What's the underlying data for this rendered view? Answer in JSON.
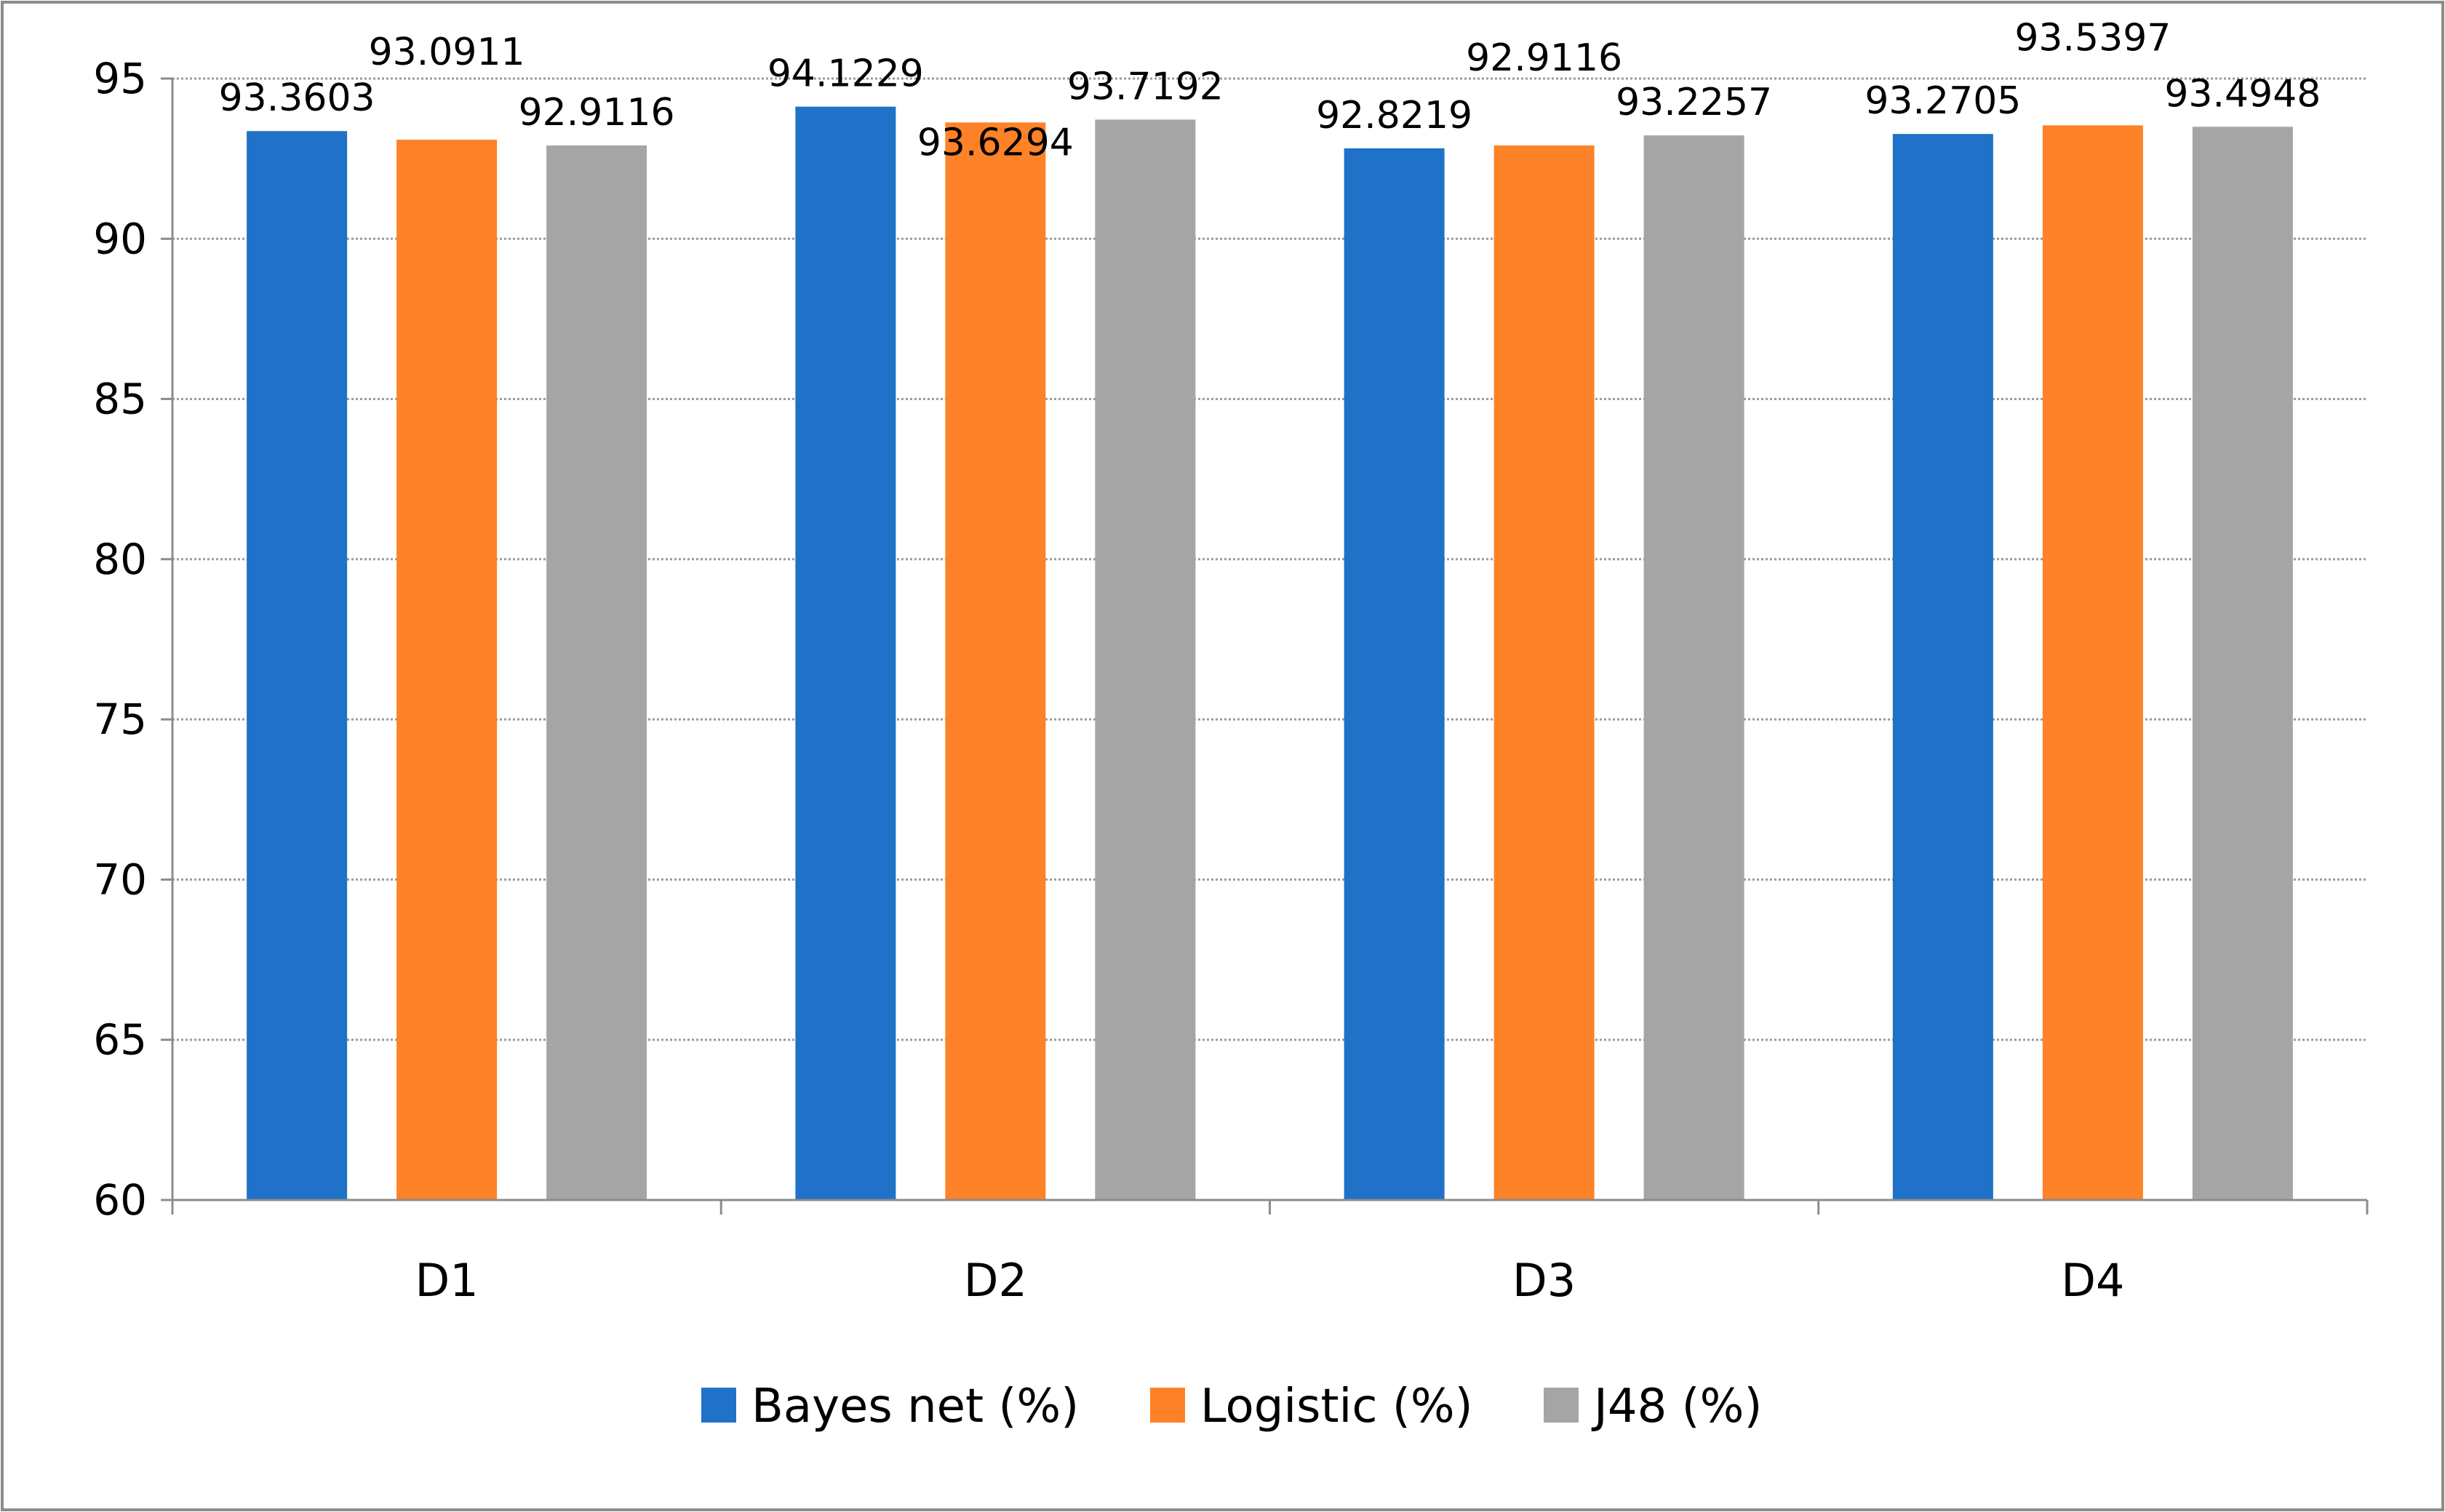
{
  "chart_data": {
    "type": "bar",
    "title": "",
    "xlabel": "",
    "ylabel": "",
    "categories": [
      "D1",
      "D2",
      "D3",
      "D4"
    ],
    "series": [
      {
        "name": "Bayes net (%)",
        "color": "#1F72C8",
        "values": [
          93.3603,
          94.1229,
          92.8219,
          93.2705
        ],
        "labels": [
          "93.3603",
          "94.1229",
          "92.8219",
          "93.2705"
        ]
      },
      {
        "name": "Logistic (%)",
        "color": "#FD8228",
        "values": [
          93.0911,
          93.6294,
          92.9116,
          93.5397
        ],
        "labels": [
          "93.0911",
          "93.6294",
          "92.9116",
          "93.5397"
        ]
      },
      {
        "name": "J48 (%)",
        "color": "#A5A5A5",
        "values": [
          92.9116,
          93.7192,
          93.2257,
          93.4948
        ],
        "labels": [
          "92.9116",
          "93.7192",
          "93.2257",
          "93.4948"
        ]
      }
    ],
    "ylim": [
      60,
      95
    ],
    "yticks": [
      60,
      65,
      70,
      75,
      80,
      85,
      90,
      95
    ],
    "ytick_labels": [
      "60",
      "65",
      "70",
      "75",
      "80",
      "85",
      "90",
      "95"
    ],
    "grid": true,
    "legend_position": "bottom"
  }
}
